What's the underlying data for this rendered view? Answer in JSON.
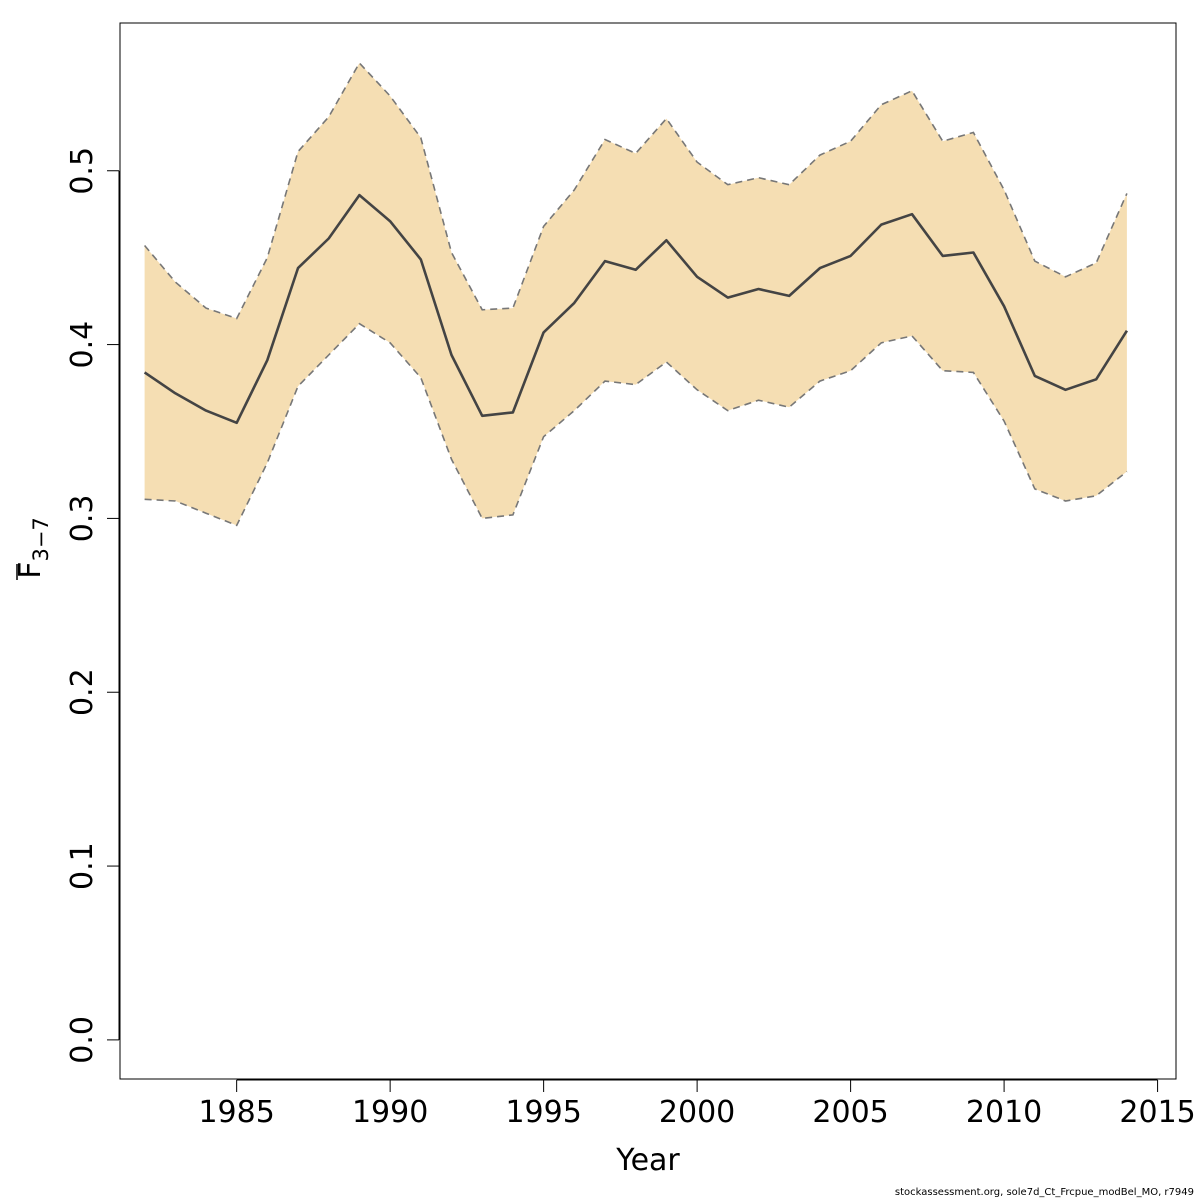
{
  "chart_data": {
    "type": "line",
    "xlabel": "Year",
    "ylabel_main": "F",
    "ylabel_subscript": "3−7",
    "xlim": [
      1981.2,
      2015.6
    ],
    "ylim": [
      -0.0225,
      0.585
    ],
    "xticks": [
      1985,
      1990,
      1995,
      2000,
      2005,
      2010,
      2015
    ],
    "xtick_labels": [
      "1985",
      "1990",
      "1995",
      "2000",
      "2005",
      "2010",
      "2015"
    ],
    "yticks": [
      0.0,
      0.1,
      0.2,
      0.3,
      0.4,
      0.5
    ],
    "ytick_labels": [
      "0.0",
      "0.1",
      "0.2",
      "0.3",
      "0.4",
      "0.5"
    ],
    "x": [
      1982,
      1983,
      1984,
      1985,
      1986,
      1987,
      1988,
      1989,
      1990,
      1991,
      1992,
      1993,
      1994,
      1995,
      1996,
      1997,
      1998,
      1999,
      2000,
      2001,
      2002,
      2003,
      2004,
      2005,
      2006,
      2007,
      2008,
      2009,
      2010,
      2011,
      2012,
      2013,
      2014
    ],
    "series": [
      {
        "role": "estimate",
        "values": [
          0.384,
          0.372,
          0.362,
          0.355,
          0.391,
          0.444,
          0.461,
          0.486,
          0.471,
          0.449,
          0.394,
          0.359,
          0.361,
          0.407,
          0.424,
          0.448,
          0.443,
          0.46,
          0.439,
          0.427,
          0.432,
          0.428,
          0.444,
          0.451,
          0.469,
          0.475,
          0.451,
          0.453,
          0.422,
          0.382,
          0.374,
          0.38,
          0.408
        ]
      },
      {
        "role": "upper",
        "values": [
          0.457,
          0.436,
          0.421,
          0.415,
          0.45,
          0.511,
          0.531,
          0.562,
          0.543,
          0.519,
          0.453,
          0.42,
          0.421,
          0.468,
          0.489,
          0.518,
          0.51,
          0.53,
          0.505,
          0.492,
          0.496,
          0.492,
          0.509,
          0.517,
          0.538,
          0.546,
          0.517,
          0.522,
          0.489,
          0.448,
          0.439,
          0.447,
          0.487
        ]
      },
      {
        "role": "lower",
        "values": [
          0.311,
          0.31,
          0.303,
          0.296,
          0.332,
          0.376,
          0.394,
          0.412,
          0.401,
          0.381,
          0.334,
          0.3,
          0.302,
          0.347,
          0.362,
          0.379,
          0.377,
          0.39,
          0.374,
          0.362,
          0.368,
          0.364,
          0.379,
          0.385,
          0.401,
          0.405,
          0.385,
          0.384,
          0.356,
          0.317,
          0.31,
          0.313,
          0.327
        ]
      }
    ],
    "colors": {
      "band_fill": "#f5deb3",
      "band_edge": "#777777",
      "estimate_line": "#444444",
      "axis": "#000000"
    },
    "grid": false,
    "legend": "none"
  },
  "footer": {
    "text": "stockassessment.org, sole7d_Ct_Frcpue_modBel_MO, r7949"
  }
}
